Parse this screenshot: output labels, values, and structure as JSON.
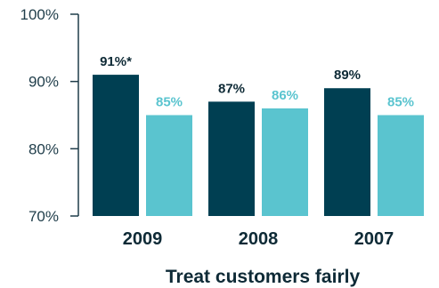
{
  "chart_data": {
    "type": "bar",
    "xlabel": "Treat customers fairly",
    "ylabel": "",
    "ylim": [
      70,
      100
    ],
    "yticks": [
      70,
      80,
      90,
      100
    ],
    "ytick_labels": [
      "70%",
      "80%",
      "90%",
      "100%"
    ],
    "categories": [
      "2009",
      "2008",
      "2007"
    ],
    "series": [
      {
        "values": [
          91,
          87,
          89
        ],
        "labels": [
          "91%*",
          "87%",
          "89%"
        ],
        "color": "#003f52",
        "label_color": "#0e2a36"
      },
      {
        "values": [
          85,
          86,
          85
        ],
        "labels": [
          "85%",
          "86%",
          "85%"
        ],
        "color": "#5ac4cf",
        "label_color": "#5ac4cf"
      }
    ],
    "grid": false,
    "legend": "none"
  }
}
